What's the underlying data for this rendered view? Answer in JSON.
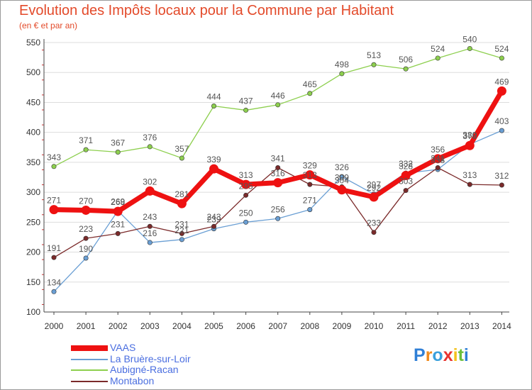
{
  "title": "Evolution des Impôts locaux pour la Commune par Habitant",
  "subtitle": "(en € et par an)",
  "logo": {
    "text": "Proxiti",
    "colors": [
      "#2f7fd6",
      "#f08a1c",
      "#39a0dc",
      "#e8332f",
      "#f4c21d",
      "#6bbf3c",
      "#2f7fd6"
    ]
  },
  "colors": {
    "grid": "#dddddd",
    "axis": "#444444",
    "tick_text": "#333333",
    "value_text": "#555555"
  },
  "chart_data": {
    "type": "line",
    "title": "Evolution des Impôts locaux pour la Commune par Habitant",
    "subtitle": "(en € et par an)",
    "xlabel": "",
    "ylabel": "",
    "x": [
      "2000",
      "2001",
      "2002",
      "2003",
      "2004",
      "2005",
      "2006",
      "2007",
      "2008",
      "2009",
      "2010",
      "2011",
      "2012",
      "2013",
      "2014"
    ],
    "ylim": [
      100,
      550
    ],
    "yticks": [
      100,
      150,
      200,
      250,
      300,
      350,
      400,
      450,
      500,
      550
    ],
    "grid": true,
    "legend_position": "bottom-left",
    "series": [
      {
        "name": "VAAS",
        "color": "#ee1111",
        "thick": true,
        "values": [
          271,
          270,
          268,
          302,
          281,
          339,
          313,
          316,
          329,
          304,
          292,
          328,
          356,
          378,
          469
        ]
      },
      {
        "name": "La Bruère-sur-Loir",
        "color": "#6a9fd4",
        "thick": false,
        "values": [
          134,
          190,
          269,
          216,
          221,
          239,
          250,
          256,
          271,
          326,
          297,
          332,
          338,
          380,
          403
        ]
      },
      {
        "name": "Aubigné-Racan",
        "color": "#8dcf4e",
        "thick": false,
        "values": [
          343,
          371,
          367,
          376,
          357,
          444,
          437,
          446,
          465,
          498,
          513,
          506,
          524,
          540,
          524
        ]
      },
      {
        "name": "Montabon",
        "color": "#7b2a2a",
        "thick": false,
        "values": [
          191,
          223,
          231,
          243,
          231,
          243,
          295,
          341,
          313,
          309,
          233,
          303,
          341,
          313,
          312
        ]
      }
    ]
  }
}
